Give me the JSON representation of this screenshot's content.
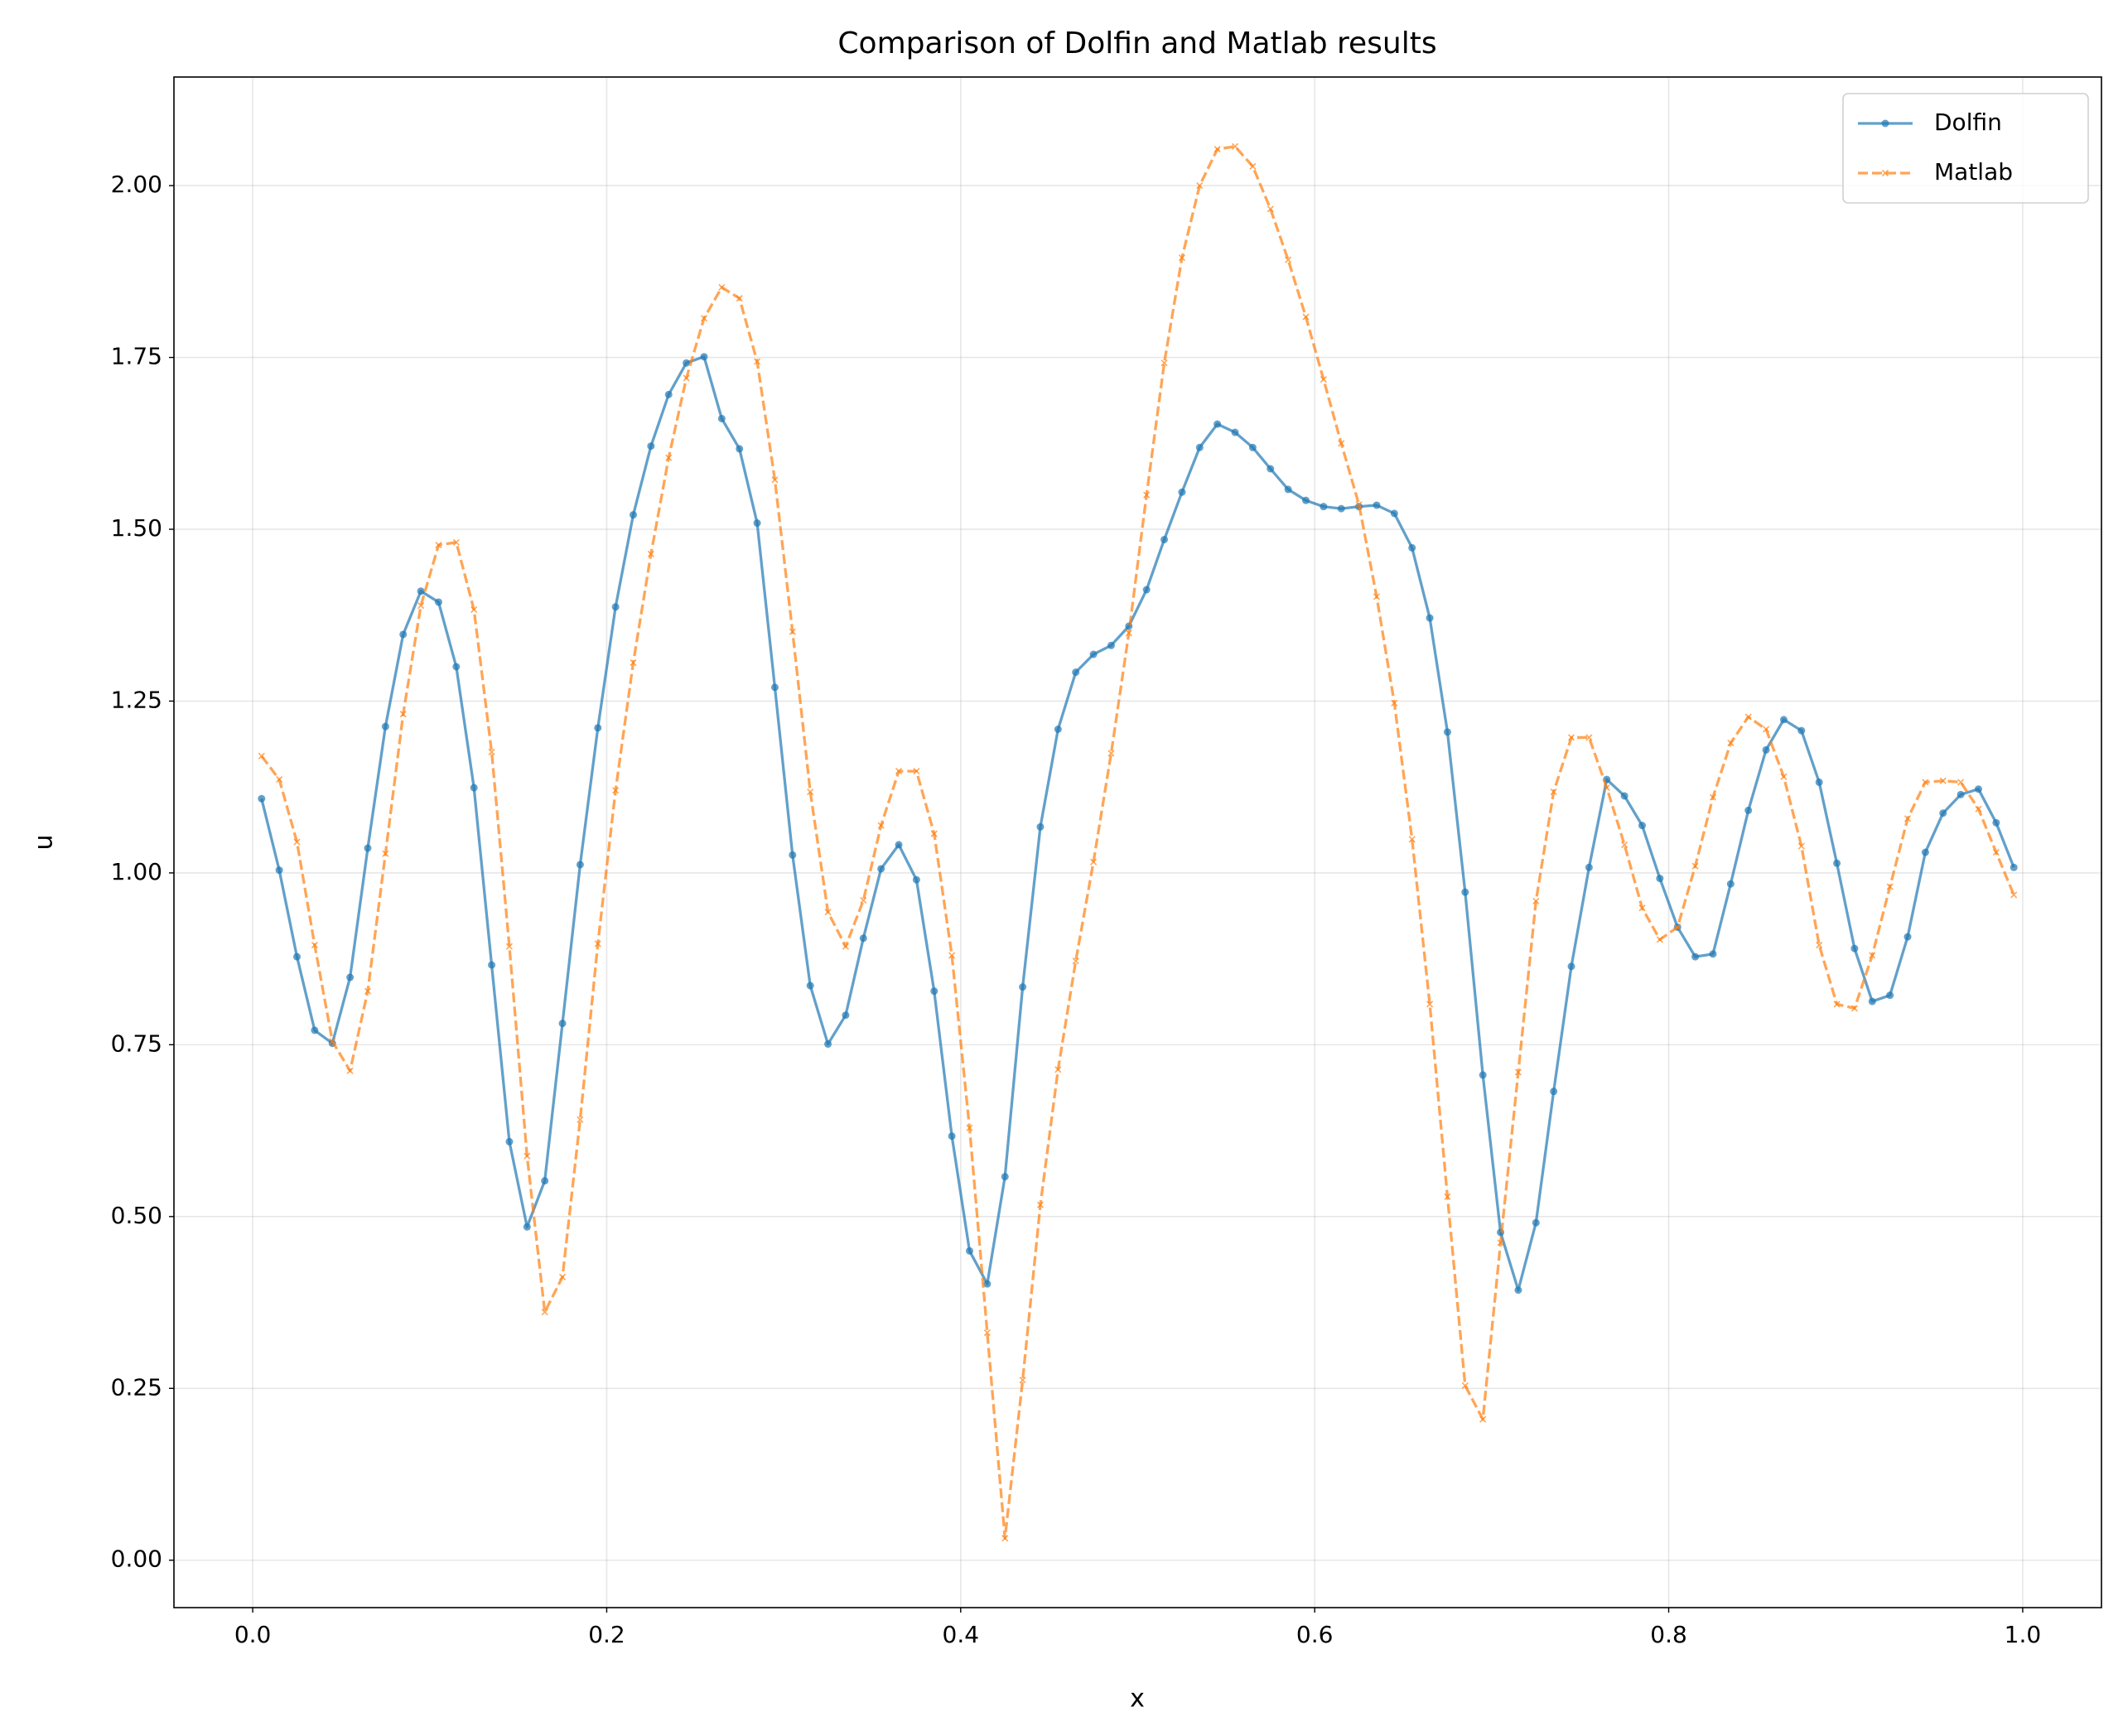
{
  "chart_data": {
    "type": "line",
    "title": "Comparison of Dolfin and Matlab results",
    "xlabel": "x",
    "ylabel": "u",
    "x": [
      0.005,
      0.015,
      0.025,
      0.035,
      0.045,
      0.055,
      0.065,
      0.075,
      0.085,
      0.095,
      0.105,
      0.115,
      0.125,
      0.135,
      0.145,
      0.155,
      0.165,
      0.175,
      0.185,
      0.195,
      0.205,
      0.215,
      0.225,
      0.235,
      0.245,
      0.255,
      0.265,
      0.275,
      0.285,
      0.295,
      0.305,
      0.315,
      0.325,
      0.335,
      0.345,
      0.355,
      0.365,
      0.375,
      0.385,
      0.395,
      0.405,
      0.415,
      0.425,
      0.435,
      0.445,
      0.455,
      0.465,
      0.475,
      0.485,
      0.495,
      0.505,
      0.515,
      0.525,
      0.535,
      0.545,
      0.555,
      0.565,
      0.575,
      0.585,
      0.595,
      0.605,
      0.615,
      0.625,
      0.635,
      0.645,
      0.655,
      0.665,
      0.675,
      0.685,
      0.695,
      0.705,
      0.715,
      0.725,
      0.735,
      0.745,
      0.755,
      0.765,
      0.775,
      0.785,
      0.795,
      0.805,
      0.815,
      0.825,
      0.835,
      0.845,
      0.855,
      0.865,
      0.875,
      0.885,
      0.895,
      0.905,
      0.915,
      0.925,
      0.935,
      0.945,
      0.955,
      0.965,
      0.975,
      0.985,
      0.995
    ],
    "series": [
      {
        "name": "Dolfin",
        "color": "#1f77b4",
        "dash": false,
        "marker": "circle",
        "values": [
          1.108,
          1.004,
          0.878,
          0.771,
          0.752,
          0.848,
          1.036,
          1.213,
          1.347,
          1.41,
          1.394,
          1.3,
          1.124,
          0.866,
          0.609,
          0.485,
          0.552,
          0.781,
          1.012,
          1.211,
          1.387,
          1.521,
          1.621,
          1.696,
          1.742,
          1.751,
          1.661,
          1.617,
          1.509,
          1.27,
          1.026,
          0.836,
          0.751,
          0.793,
          0.905,
          1.006,
          1.041,
          0.99,
          0.828,
          0.617,
          0.45,
          0.402,
          0.558,
          0.834,
          1.067,
          1.209,
          1.292,
          1.318,
          1.331,
          1.359,
          1.412,
          1.485,
          1.554,
          1.619,
          1.653,
          1.641,
          1.619,
          1.588,
          1.558,
          1.542,
          1.533,
          1.53,
          1.533,
          1.535,
          1.523,
          1.473,
          1.371,
          1.205,
          0.972,
          0.706,
          0.477,
          0.393,
          0.491,
          0.682,
          0.864,
          1.008,
          1.136,
          1.112,
          1.069,
          0.992,
          0.921,
          0.878,
          0.882,
          0.984,
          1.091,
          1.179,
          1.223,
          1.207,
          1.132,
          1.014,
          0.89,
          0.813,
          0.822,
          0.907,
          1.03,
          1.087,
          1.114,
          1.122,
          1.073,
          1.008
        ]
      },
      {
        "name": "Matlab",
        "color": "#ff7f0e",
        "dash": true,
        "marker": "x",
        "values": [
          1.17,
          1.136,
          1.045,
          0.895,
          0.755,
          0.712,
          0.828,
          1.028,
          1.231,
          1.389,
          1.477,
          1.481,
          1.383,
          1.176,
          0.893,
          0.588,
          0.361,
          0.412,
          0.641,
          0.897,
          1.12,
          1.306,
          1.464,
          1.604,
          1.72,
          1.807,
          1.852,
          1.836,
          1.744,
          1.572,
          1.351,
          1.118,
          0.943,
          0.893,
          0.96,
          1.069,
          1.148,
          1.148,
          1.057,
          0.88,
          0.629,
          0.331,
          0.032,
          0.262,
          0.517,
          0.714,
          0.872,
          1.016,
          1.174,
          1.349,
          1.55,
          1.742,
          1.895,
          2.0,
          2.053,
          2.057,
          2.028,
          1.966,
          1.892,
          1.809,
          1.718,
          1.625,
          1.536,
          1.402,
          1.247,
          1.049,
          0.809,
          0.529,
          0.254,
          0.205,
          0.462,
          0.71,
          0.959,
          1.118,
          1.197,
          1.197,
          1.124,
          1.041,
          0.949,
          0.903,
          0.921,
          1.01,
          1.11,
          1.189,
          1.227,
          1.209,
          1.14,
          1.039,
          0.895,
          0.809,
          0.803,
          0.88,
          0.98,
          1.079,
          1.132,
          1.134,
          1.132,
          1.093,
          1.03,
          0.968
        ]
      }
    ],
    "xlim": [
      -0.0445,
      1.0445
    ],
    "xticks": [
      {
        "value": 0,
        "label": "0.0"
      },
      {
        "value": 0.2,
        "label": "0.2"
      },
      {
        "value": 0.4,
        "label": "0.4"
      },
      {
        "value": 0.6,
        "label": "0.6"
      },
      {
        "value": 0.8,
        "label": "0.8"
      },
      {
        "value": 1,
        "label": "1.0"
      }
    ],
    "ylim": [
      -0.069,
      2.158
    ],
    "yticks": [
      {
        "value": 0,
        "label": "0.00"
      },
      {
        "value": 0.25,
        "label": "0.25"
      },
      {
        "value": 0.5,
        "label": "0.50"
      },
      {
        "value": 0.75,
        "label": "0.75"
      },
      {
        "value": 1,
        "label": "1.00"
      },
      {
        "value": 1.25,
        "label": "1.25"
      },
      {
        "value": 1.5,
        "label": "1.50"
      },
      {
        "value": 1.75,
        "label": "1.75"
      },
      {
        "value": 2,
        "label": "2.00"
      }
    ],
    "grid": true,
    "legend": "upper right"
  }
}
